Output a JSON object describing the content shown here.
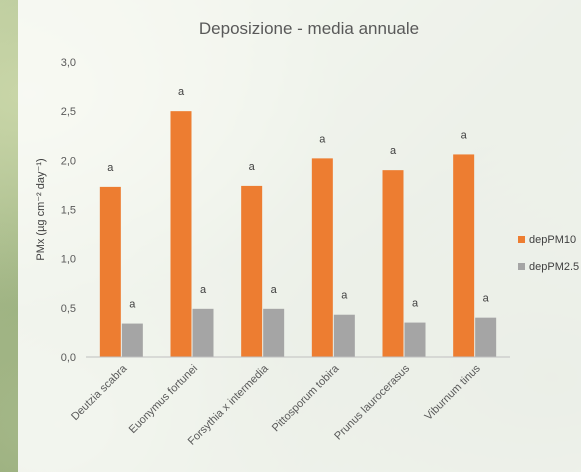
{
  "chart_data": {
    "type": "bar",
    "title": "Deposizione - media annuale",
    "ylabel": "PMx (µg cm⁻² day⁻¹)",
    "xlabel": "",
    "categories": [
      "Deutzia scabra",
      "Euonymus fortunei",
      "Forsythia x intermedia",
      "Pittosporum tobira",
      "Prunus laurocerasus",
      "Viburnum tinus"
    ],
    "ylim": [
      0,
      3.0
    ],
    "yticks": [
      "0,0",
      "0,5",
      "1,0",
      "1,5",
      "2,0",
      "2,5",
      "3,0"
    ],
    "grid": false,
    "legend_position": "right",
    "series": [
      {
        "name": "depPM10",
        "color": "#ED7D31",
        "values": [
          1.73,
          2.5,
          1.74,
          2.02,
          1.9,
          2.06
        ],
        "labels": [
          "a",
          "a",
          "a",
          "a",
          "a",
          "a"
        ]
      },
      {
        "name": "depPM2.5",
        "color": "#A5A5A5",
        "values": [
          0.34,
          0.49,
          0.49,
          0.43,
          0.35,
          0.4
        ],
        "labels": [
          "a",
          "a",
          "a",
          "a",
          "a",
          "a"
        ]
      }
    ]
  }
}
